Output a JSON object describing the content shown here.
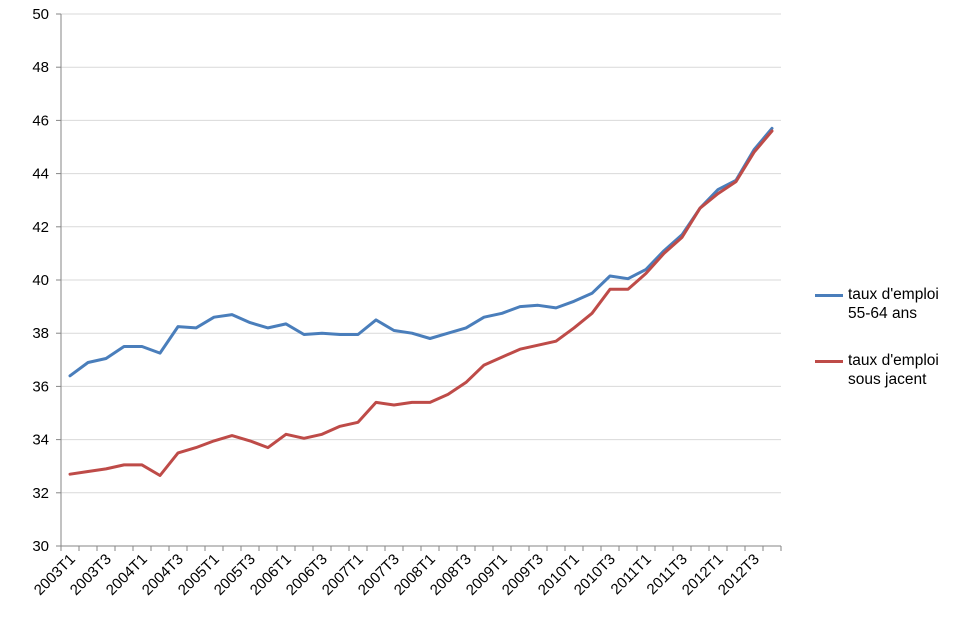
{
  "chart_data": {
    "type": "line",
    "title": "",
    "xlabel": "",
    "ylabel": "",
    "ylim": [
      30,
      50
    ],
    "yticks": [
      30,
      32,
      34,
      36,
      38,
      40,
      42,
      44,
      46,
      48,
      50
    ],
    "x": [
      "2003T1",
      "2003T2",
      "2003T3",
      "2003T4",
      "2004T1",
      "2004T2",
      "2004T3",
      "2004T4",
      "2005T1",
      "2005T2",
      "2005T3",
      "2005T4",
      "2006T1",
      "2006T2",
      "2006T3",
      "2006T4",
      "2007T1",
      "2007T2",
      "2007T3",
      "2007T4",
      "2008T1",
      "2008T2",
      "2008T3",
      "2008T4",
      "2009T1",
      "2009T2",
      "2009T3",
      "2009T4",
      "2010T1",
      "2010T2",
      "2010T3",
      "2010T4",
      "2011T1",
      "2011T2",
      "2011T3",
      "2011T4",
      "2012T1",
      "2012T2",
      "2012T3",
      "2012T4"
    ],
    "tick_labels": [
      "2003T1",
      "2003T3",
      "2004T1",
      "2004T3",
      "2005T1",
      "2005T3",
      "2006T1",
      "2006T3",
      "2007T1",
      "2007T3",
      "2008T1",
      "2008T3",
      "2009T1",
      "2009T3",
      "2010T1",
      "2010T3",
      "2011T1",
      "2011T3",
      "2012T1",
      "2012T3"
    ],
    "grid": "horizontal",
    "legend_position": "right",
    "series": [
      {
        "name": "taux d'emploi\n55-64 ans",
        "color": "#4a7ebb",
        "values": [
          36.4,
          36.9,
          37.05,
          37.5,
          37.5,
          37.25,
          38.25,
          38.2,
          38.6,
          38.7,
          38.4,
          38.2,
          38.35,
          37.95,
          38.0,
          37.95,
          37.95,
          38.5,
          38.1,
          38.0,
          37.8,
          38.0,
          38.2,
          38.6,
          38.75,
          39.0,
          39.05,
          38.95,
          39.2,
          39.5,
          40.15,
          40.05,
          40.4,
          41.1,
          41.7,
          42.7,
          43.4,
          43.75,
          44.9,
          45.7
        ]
      },
      {
        "name": "taux d'emploi\nsous jacent",
        "color": "#be4b48",
        "values": [
          32.7,
          32.8,
          32.9,
          33.05,
          33.05,
          32.65,
          33.5,
          33.7,
          33.95,
          34.15,
          33.95,
          33.7,
          34.2,
          34.05,
          34.2,
          34.5,
          34.65,
          35.4,
          35.3,
          35.4,
          35.4,
          35.7,
          36.15,
          36.8,
          37.1,
          37.4,
          37.55,
          37.7,
          38.2,
          38.75,
          39.65,
          39.65,
          40.25,
          41.0,
          41.6,
          42.7,
          43.25,
          43.7,
          44.8,
          45.6
        ]
      }
    ]
  }
}
